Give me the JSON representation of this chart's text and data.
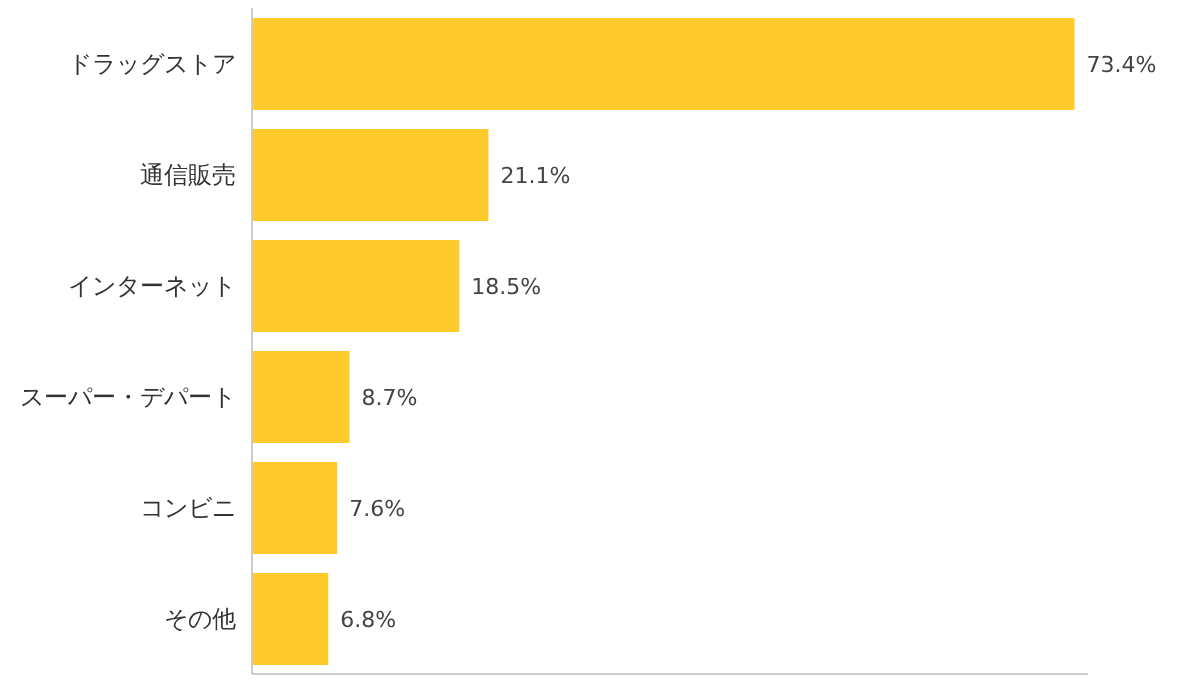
{
  "chart_data": {
    "type": "bar",
    "orientation": "horizontal",
    "categories": [
      "ドラッグストア",
      "通信販売",
      "インターネット",
      "スーパー・デパート",
      "コンビニ",
      "その他"
    ],
    "values": [
      73.4,
      21.1,
      18.5,
      8.7,
      7.6,
      6.8
    ],
    "value_labels": [
      "73.4%",
      "21.1%",
      "18.5%",
      "8.7%",
      "7.6%",
      "6.8%"
    ],
    "color": "#ffca2b",
    "xlim": [
      0,
      74.6
    ],
    "grid": false
  }
}
